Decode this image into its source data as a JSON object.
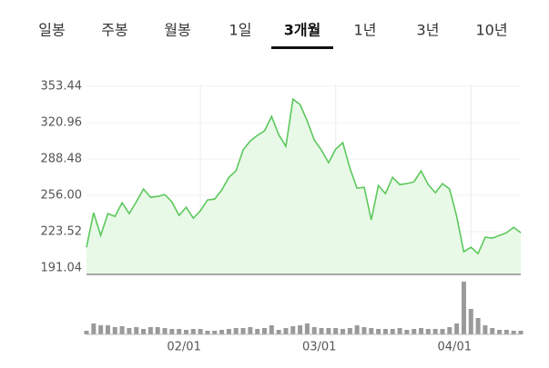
{
  "tabs": {
    "items": [
      "일봉",
      "주봉",
      "월봉",
      "1일",
      "3개월",
      "1년",
      "3년",
      "10년"
    ],
    "selected": 4
  },
  "chart_data": [
    {
      "type": "area",
      "values": [
        209.7,
        240.5,
        220.2,
        239.7,
        237.3,
        249.5,
        239.7,
        250.3,
        261.7,
        254.3,
        255.1,
        256.8,
        250.3,
        238.1,
        245.4,
        235.7,
        242.2,
        251.9,
        252.7,
        260.9,
        272.2,
        277.9,
        296.6,
        304.7,
        309.6,
        313.6,
        326.6,
        310.4,
        299.8,
        342.0,
        337.2,
        322.6,
        305.5,
        296.6,
        285.2,
        297.4,
        303.1,
        280.3,
        262.5,
        263.3,
        234.0,
        264.9,
        257.6,
        272.2,
        265.7,
        266.5,
        268.1,
        277.9,
        265.7,
        258.4,
        266.5,
        261.7,
        237.3,
        205.6,
        209.7,
        204.0,
        218.6,
        217.8,
        220.2,
        222.7,
        227.5,
        222.7
      ],
      "color": "#5cc85c",
      "ylim": [
        185.4,
        355.1
      ],
      "yticks": [
        {
          "value": 353.44,
          "label": "353.44"
        },
        {
          "value": 320.96,
          "label": "320.96"
        },
        {
          "value": 288.48,
          "label": "288.48"
        },
        {
          "value": 256.0,
          "label": "256.00"
        },
        {
          "value": 223.52,
          "label": "223.52"
        },
        {
          "value": 191.04,
          "label": "191.04"
        }
      ],
      "grid": true
    },
    {
      "type": "bar",
      "categories": [
        null,
        null,
        null,
        null,
        null,
        null,
        null,
        null,
        null,
        null,
        null,
        null,
        null,
        null,
        null,
        null,
        "02/01",
        null,
        null,
        null,
        null,
        null,
        null,
        null,
        null,
        null,
        null,
        null,
        null,
        null,
        null,
        null,
        null,
        null,
        null,
        "03/01",
        null,
        null,
        null,
        null,
        null,
        null,
        null,
        null,
        null,
        null,
        null,
        null,
        null,
        null,
        null,
        null,
        null,
        null,
        "04/01",
        null,
        null,
        null,
        null,
        null,
        null,
        null
      ],
      "values": [
        4,
        12,
        10,
        10,
        8,
        9,
        7,
        8,
        6,
        8,
        8,
        7,
        6,
        6,
        5,
        6,
        6,
        4,
        4,
        5,
        6,
        7,
        7,
        8,
        6,
        7,
        10,
        5,
        7,
        9,
        10,
        12,
        8,
        7,
        7,
        7,
        6,
        7,
        10,
        8,
        7,
        6,
        6,
        6,
        7,
        5,
        6,
        7,
        6,
        6,
        6,
        8,
        12,
        58,
        28,
        18,
        10,
        7,
        5,
        5,
        4,
        4
      ],
      "color": "#9a9a9a",
      "ylim": [
        0,
        60
      ]
    }
  ]
}
